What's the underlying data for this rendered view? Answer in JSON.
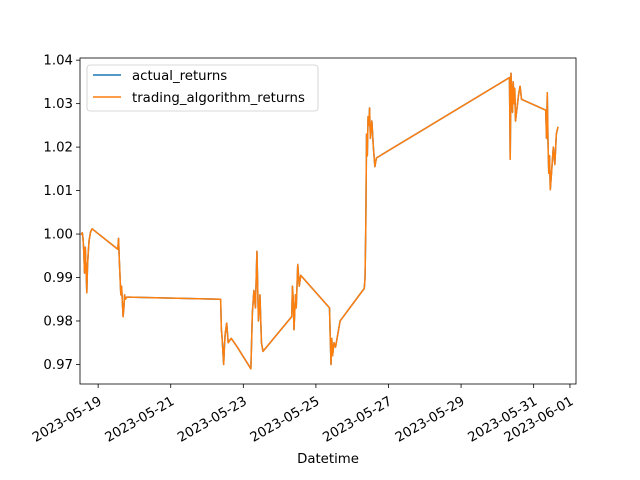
{
  "chart_data": {
    "type": "line",
    "title": "",
    "xlabel": "Datetime",
    "ylabel": "",
    "xlim": [
      "2023-05-18T12:00",
      "2023-06-01T04:00"
    ],
    "ylim": [
      0.9655,
      1.0405
    ],
    "x_ticks": [
      "2023-05-19",
      "2023-05-21",
      "2023-05-23",
      "2023-05-25",
      "2023-05-27",
      "2023-05-29",
      "2023-05-31",
      "2023-06-01"
    ],
    "y_ticks": [
      0.97,
      0.98,
      0.99,
      1.0,
      1.01,
      1.02,
      1.03,
      1.04
    ],
    "y_tick_labels": [
      "0.97",
      "0.98",
      "0.99",
      "1.00",
      "1.01",
      "1.02",
      "1.03",
      "1.04"
    ],
    "grid": false,
    "legend_position": "upper-left",
    "series": [
      {
        "name": "actual_returns",
        "color": "#1f77b4",
        "x": [
          "2023-05-18T13:00",
          "2023-05-18T13:30",
          "2023-05-18T14:00",
          "2023-05-18T14:30",
          "2023-05-18T15:00",
          "2023-05-18T15:30",
          "2023-05-18T16:00",
          "2023-05-18T16:30",
          "2023-05-18T17:00",
          "2023-05-18T17:30",
          "2023-05-18T18:00",
          "2023-05-18T19:00",
          "2023-05-18T20:00",
          "2023-05-19T13:00",
          "2023-05-19T13:30",
          "2023-05-19T14:00",
          "2023-05-19T14:30",
          "2023-05-19T15:00",
          "2023-05-19T15:30",
          "2023-05-19T16:00",
          "2023-05-19T16:30",
          "2023-05-19T17:00",
          "2023-05-19T17:30",
          "2023-05-19T18:00",
          "2023-05-19T19:00",
          "2023-05-19T20:00",
          "2023-05-22T09:00",
          "2023-05-22T09:30",
          "2023-05-22T10:00",
          "2023-05-22T10:30",
          "2023-05-22T11:00",
          "2023-05-22T11:30",
          "2023-05-22T12:00",
          "2023-05-22T13:00",
          "2023-05-22T14:00",
          "2023-05-22T16:00",
          "2023-05-22T20:00",
          "2023-05-23T05:00",
          "2023-05-23T06:00",
          "2023-05-23T07:00",
          "2023-05-23T08:00",
          "2023-05-23T09:00",
          "2023-05-23T10:00",
          "2023-05-23T11:00",
          "2023-05-23T12:00",
          "2023-05-23T13:00",
          "2023-05-24T08:00",
          "2023-05-24T08:30",
          "2023-05-24T09:00",
          "2023-05-24T09:30",
          "2023-05-24T10:00",
          "2023-05-24T10:30",
          "2023-05-24T11:00",
          "2023-05-24T12:00",
          "2023-05-24T13:00",
          "2023-05-24T14:00",
          "2023-05-25T09:00",
          "2023-05-25T09:30",
          "2023-05-25T10:00",
          "2023-05-25T10:30",
          "2023-05-25T11:00",
          "2023-05-25T12:00",
          "2023-05-25T13:00",
          "2023-05-25T14:00",
          "2023-05-25T15:00",
          "2023-05-25T16:00",
          "2023-05-26T08:00",
          "2023-05-26T08:30",
          "2023-05-26T09:00",
          "2023-05-26T09:30",
          "2023-05-26T10:00",
          "2023-05-26T10:30",
          "2023-05-26T11:00",
          "2023-05-26T11:30",
          "2023-05-26T12:00",
          "2023-05-26T13:00",
          "2023-05-26T14:00",
          "2023-05-26T15:00",
          "2023-05-26T16:00",
          "2023-05-30T08:00",
          "2023-05-30T08:30",
          "2023-05-30T09:00",
          "2023-05-30T09:30",
          "2023-05-30T10:00",
          "2023-05-30T10:30",
          "2023-05-30T11:00",
          "2023-05-30T11:30",
          "2023-05-30T12:00",
          "2023-05-30T13:00",
          "2023-05-30T14:00",
          "2023-05-30T15:00",
          "2023-05-30T16:00",
          "2023-05-31T08:00",
          "2023-05-31T08:30",
          "2023-05-31T09:00",
          "2023-05-31T09:30",
          "2023-05-31T10:00",
          "2023-05-31T10:30",
          "2023-05-31T11:00",
          "2023-05-31T12:00",
          "2023-05-31T13:00",
          "2023-05-31T14:00",
          "2023-05-31T15:00",
          "2023-05-31T16:00"
        ],
        "y": [
          1.0,
          1.0003,
          0.999,
          0.996,
          0.991,
          0.997,
          0.992,
          0.9865,
          0.993,
          0.996,
          0.9985,
          1.0005,
          1.0012,
          0.9965,
          0.999,
          0.994,
          0.99,
          0.986,
          0.988,
          0.9845,
          0.981,
          0.983,
          0.986,
          0.985,
          0.9855,
          0.9855,
          0.985,
          0.978,
          0.976,
          0.973,
          0.97,
          0.974,
          0.977,
          0.9795,
          0.975,
          0.976,
          0.974,
          0.969,
          0.982,
          0.987,
          0.983,
          0.996,
          0.98,
          0.986,
          0.975,
          0.973,
          0.981,
          0.988,
          0.985,
          0.978,
          0.982,
          0.986,
          0.983,
          0.993,
          0.988,
          0.9905,
          0.983,
          0.976,
          0.97,
          0.976,
          0.972,
          0.975,
          0.974,
          0.976,
          0.978,
          0.98,
          0.9875,
          0.99,
          1.002,
          1.023,
          1.018,
          1.027,
          1.025,
          1.029,
          1.022,
          1.026,
          1.02,
          1.0155,
          1.0175,
          1.036,
          1.0172,
          1.037,
          1.033,
          1.028,
          1.035,
          1.03,
          1.0335,
          1.026,
          1.029,
          1.032,
          1.034,
          1.031,
          1.0285,
          1.022,
          1.0325,
          1.021,
          1.014,
          1.018,
          1.0102,
          1.015,
          1.02,
          1.016,
          1.023,
          1.0245
        ]
      },
      {
        "name": "trading_algorithm_returns",
        "color": "#ff7f0e",
        "same_as": "actual_returns"
      }
    ]
  }
}
